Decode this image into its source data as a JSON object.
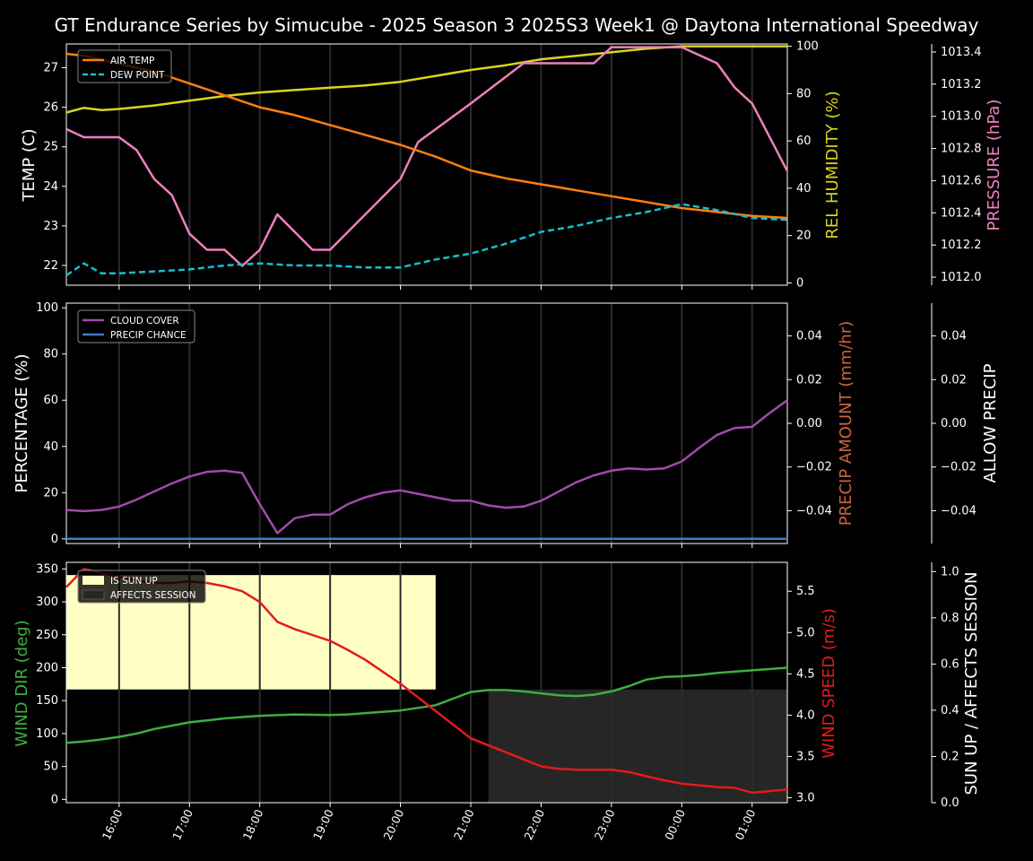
{
  "title": "GT Endurance Series by Simucube - 2025 Season 3 2025S3 Week1 @ Daytona International Speedway",
  "x_axis": {
    "ticks": [
      "16:00",
      "17:00",
      "18:00",
      "19:00",
      "20:00",
      "21:00",
      "22:00",
      "23:00",
      "00:00",
      "01:00"
    ],
    "range_hours": [
      15.25,
      25.5
    ]
  },
  "colors": {
    "air_temp": "#ff7f0e",
    "dew_point": "#17becf",
    "humidity": "#d6d61e",
    "pressure": "#f07fbf",
    "cloud": "#a04ca8",
    "precip_chance": "#3a7dc9",
    "precip_amount": "#c8643c",
    "wind_dir": "#3fae3f",
    "wind_speed": "#e31a1c",
    "sun_up": "#ffffc4",
    "affects": "#262626"
  },
  "chart_data": [
    {
      "type": "line",
      "panel": "weather",
      "ylabel": "TEMP (C)",
      "ylim": [
        21.5,
        27.6
      ],
      "yticks": [
        22,
        23,
        24,
        25,
        26,
        27
      ],
      "legend": [
        "AIR TEMP",
        "DEW POINT"
      ],
      "legend_placement": "top-left",
      "right_axes": [
        {
          "label": "REL HUMIDITY (%)",
          "ylim": [
            -1,
            101
          ],
          "yticks": [
            0,
            20,
            40,
            60,
            80,
            100
          ]
        },
        {
          "label": "PRESSURE (hPa)",
          "ylim": [
            1011.95,
            1013.45
          ],
          "yticks": [
            "1012.0",
            "1012.2",
            "1012.4",
            "1012.6",
            "1012.8",
            "1013.0",
            "1013.2",
            "1013.4"
          ]
        }
      ],
      "series": [
        {
          "name": "AIR TEMP",
          "axis": "temp",
          "x": [
            15.25,
            15.5,
            15.75,
            16,
            16.25,
            16.5,
            16.75,
            17,
            17.25,
            17.5,
            17.75,
            18,
            18.5,
            19,
            19.5,
            20,
            20.5,
            21,
            21.5,
            22,
            22.5,
            23,
            23.5,
            24,
            24.5,
            25,
            25.5
          ],
          "y": [
            27.35,
            27.3,
            27.2,
            27.1,
            27.0,
            26.9,
            26.75,
            26.6,
            26.45,
            26.3,
            26.15,
            26.0,
            25.8,
            25.55,
            25.3,
            25.05,
            24.75,
            24.4,
            24.2,
            24.05,
            23.9,
            23.75,
            23.6,
            23.45,
            23.35,
            23.25,
            23.2
          ]
        },
        {
          "name": "DEW POINT",
          "axis": "temp",
          "dashed": true,
          "x": [
            15.25,
            15.5,
            15.75,
            16,
            16.5,
            17,
            17.5,
            18,
            18.5,
            19,
            19.5,
            20,
            20.5,
            21,
            21.5,
            22,
            22.5,
            23,
            23.5,
            24,
            24.5,
            25,
            25.5
          ],
          "y": [
            21.75,
            22.05,
            21.8,
            21.8,
            21.85,
            21.9,
            22.0,
            22.05,
            22.0,
            22.0,
            21.95,
            21.95,
            22.15,
            22.3,
            22.55,
            22.85,
            23.0,
            23.2,
            23.35,
            23.55,
            23.4,
            23.2,
            23.15
          ]
        },
        {
          "name": "REL HUMIDITY",
          "axis": "humidity",
          "x": [
            15.25,
            15.5,
            15.75,
            16,
            16.5,
            17,
            17.5,
            18,
            18.5,
            19,
            19.5,
            20,
            20.5,
            21,
            21.5,
            22,
            22.5,
            23,
            23.5,
            24,
            24.5,
            25,
            25.5
          ],
          "y": [
            72,
            74,
            73,
            73.5,
            75,
            77,
            79,
            80.5,
            81.5,
            82.5,
            83.5,
            85,
            87.5,
            90,
            92,
            94.5,
            96,
            97.5,
            99,
            100,
            100,
            100,
            100
          ]
        },
        {
          "name": "PRESSURE",
          "axis": "pressure",
          "x": [
            15.25,
            15.5,
            15.75,
            16,
            16.25,
            16.5,
            16.75,
            17,
            17.25,
            17.5,
            17.75,
            18,
            18.25,
            18.75,
            19,
            20,
            20.25,
            21,
            21.75,
            22,
            22.75,
            23,
            23.5,
            24,
            24.5,
            24.75,
            25,
            25.5
          ],
          "y": [
            1012.92,
            1012.87,
            1012.87,
            1012.87,
            1012.79,
            1012.61,
            1012.51,
            1012.27,
            1012.17,
            1012.17,
            1012.07,
            1012.17,
            1012.39,
            1012.17,
            1012.17,
            1012.61,
            1012.84,
            1013.08,
            1013.33,
            1013.33,
            1013.33,
            1013.43,
            1013.43,
            1013.43,
            1013.33,
            1013.18,
            1013.08,
            1012.66
          ]
        }
      ]
    },
    {
      "type": "line",
      "panel": "clouds",
      "ylabel": "PERCENTAGE (%)",
      "ylim": [
        -2,
        102
      ],
      "yticks": [
        0,
        20,
        40,
        60,
        80,
        100
      ],
      "legend": [
        "CLOUD COVER",
        "PRECIP CHANCE"
      ],
      "legend_placement": "top-left",
      "right_axes": [
        {
          "label": "PRECIP AMOUNT (mm/hr)",
          "ylim": [
            -0.055,
            0.055
          ],
          "yticks": [
            "−0.04",
            "−0.02",
            "0.00",
            "0.02",
            "0.04"
          ]
        },
        {
          "label": "ALLOW PRECIP",
          "ylim": [
            -0.055,
            0.055
          ],
          "yticks": [
            "−0.04",
            "−0.02",
            "0.00",
            "0.02",
            "0.04"
          ]
        }
      ],
      "series": [
        {
          "name": "CLOUD COVER",
          "x": [
            15.25,
            15.5,
            15.75,
            16,
            16.25,
            16.5,
            16.75,
            17,
            17.25,
            17.5,
            17.75,
            18,
            18.25,
            18.5,
            18.75,
            19,
            19.25,
            19.5,
            19.75,
            20,
            20.25,
            20.5,
            20.75,
            21,
            21.25,
            21.5,
            21.75,
            22,
            22.25,
            22.5,
            22.75,
            23,
            23.25,
            23.5,
            23.75,
            24,
            24.25,
            24.5,
            24.75,
            25,
            25.25,
            25.5
          ],
          "y": [
            12.5,
            12,
            12.5,
            14,
            17,
            20.5,
            24,
            27,
            29,
            29.5,
            28.5,
            15,
            2.5,
            9,
            10.5,
            10.5,
            15,
            18,
            20,
            21,
            19.5,
            18,
            16.5,
            16.5,
            14.5,
            13.5,
            14,
            16.5,
            20.5,
            24.5,
            27.5,
            29.5,
            30.5,
            30,
            30.5,
            33.5,
            39.5,
            45,
            48,
            48.5,
            54.5,
            60
          ]
        },
        {
          "name": "PRECIP CHANCE",
          "x": [
            15.25,
            25.5
          ],
          "y": [
            0,
            0
          ]
        }
      ]
    },
    {
      "type": "line",
      "panel": "wind",
      "ylabel": "WIND DIR (deg)",
      "ylim": [
        -5,
        360
      ],
      "yticks": [
        0,
        50,
        100,
        150,
        200,
        250,
        300,
        350
      ],
      "legend": [
        "IS SUN UP",
        "AFFECTS SESSION"
      ],
      "legend_placement": "top-left",
      "right_axes": [
        {
          "label": "WIND SPEED (m/s)",
          "ylim": [
            2.94,
            5.85
          ],
          "yticks": [
            "3.0",
            "3.5",
            "4.0",
            "4.5",
            "5.0",
            "5.5"
          ]
        },
        {
          "label": "SUN UP / AFFECTS SESSION",
          "ylim": [
            0,
            1.04
          ],
          "yticks": [
            "0.0",
            "0.2",
            "0.4",
            "0.6",
            "0.8",
            "1.0"
          ]
        }
      ],
      "sun_up": {
        "start": 15.25,
        "end": 20.5,
        "value": 1
      },
      "affects_session": {
        "start": 21.25,
        "end": 25.5,
        "value": 1
      },
      "series": [
        {
          "name": "WIND DIR",
          "axis": "dir",
          "x": [
            15.25,
            15.5,
            15.75,
            16,
            16.25,
            16.5,
            16.75,
            17,
            17.25,
            17.5,
            17.75,
            18,
            18.5,
            19,
            19.25,
            19.5,
            20,
            20.5,
            21,
            21.25,
            21.5,
            21.75,
            22,
            22.25,
            22.5,
            22.75,
            23,
            23.25,
            23.5,
            23.75,
            24,
            24.25,
            24.5,
            25,
            25.5
          ],
          "y": [
            86,
            88,
            91,
            95,
            100,
            107,
            112,
            117,
            120,
            123,
            125,
            127,
            129,
            128,
            129,
            131,
            135,
            143,
            163,
            166,
            166,
            164,
            161,
            158,
            157,
            159,
            164,
            172,
            182,
            186,
            187,
            189,
            192,
            196,
            200
          ]
        },
        {
          "name": "WIND SPEED",
          "axis": "speed",
          "x": [
            15.25,
            15.5,
            15.75,
            16,
            16.25,
            16.5,
            16.75,
            17,
            17.25,
            17.5,
            17.75,
            18,
            18.25,
            18.5,
            19,
            19.25,
            19.5,
            20,
            20.5,
            21,
            21.5,
            22,
            22.25,
            22.5,
            23,
            23.25,
            23.5,
            23.75,
            24,
            24.5,
            24.75,
            25,
            25.5
          ],
          "y": [
            5.55,
            5.77,
            5.72,
            5.67,
            5.63,
            5.6,
            5.6,
            5.62,
            5.6,
            5.56,
            5.5,
            5.37,
            5.13,
            5.04,
            4.9,
            4.79,
            4.67,
            4.38,
            4.05,
            3.72,
            3.55,
            3.38,
            3.35,
            3.34,
            3.34,
            3.31,
            3.26,
            3.21,
            3.17,
            3.13,
            3.12,
            3.06,
            3.1
          ]
        }
      ]
    }
  ]
}
